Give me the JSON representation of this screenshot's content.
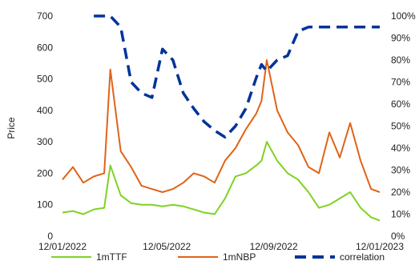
{
  "chart_data": {
    "type": "line",
    "title": "",
    "xlabel": "",
    "ylabel": "Price",
    "y2label": "",
    "ylim": [
      0,
      700
    ],
    "y2lim": [
      0,
      1
    ],
    "grid": false,
    "legend_position": "bottom",
    "xtick_labels": [
      "12/01/2022",
      "12/05/2022",
      "12/09/2022",
      "12/01/2023"
    ],
    "ytick_labels": [
      "0",
      "100",
      "200",
      "300",
      "400",
      "500",
      "600",
      "700"
    ],
    "y2tick_labels": [
      "0%",
      "10%",
      "20%",
      "30%",
      "40%",
      "50%",
      "60%",
      "70%",
      "80%",
      "90%",
      "100%"
    ],
    "x": [
      "2022-01-12",
      "2022-01-24",
      "2022-02-05",
      "2022-02-17",
      "2022-03-01",
      "2022-03-08",
      "2022-03-20",
      "2022-04-01",
      "2022-04-13",
      "2022-04-25",
      "2022-05-07",
      "2022-05-19",
      "2022-05-31",
      "2022-06-12",
      "2022-06-24",
      "2022-07-06",
      "2022-07-18",
      "2022-07-30",
      "2022-08-11",
      "2022-08-23",
      "2022-08-29",
      "2022-09-04",
      "2022-09-16",
      "2022-09-28",
      "2022-10-10",
      "2022-10-22",
      "2022-11-03",
      "2022-11-15",
      "2022-11-27",
      "2022-12-09",
      "2022-12-21",
      "2023-01-02",
      "2023-01-12"
    ],
    "series": [
      {
        "name": "1mTTF",
        "color": "#7ed321",
        "style": "solid",
        "axis": "left",
        "values": [
          75,
          80,
          70,
          85,
          90,
          225,
          130,
          105,
          100,
          100,
          95,
          100,
          95,
          85,
          75,
          70,
          120,
          190,
          200,
          225,
          240,
          300,
          240,
          200,
          180,
          140,
          90,
          100,
          120,
          140,
          90,
          60,
          50
        ]
      },
      {
        "name": "1mNBP",
        "color": "#e06317",
        "style": "solid",
        "axis": "left",
        "values": [
          180,
          220,
          170,
          190,
          200,
          530,
          270,
          220,
          160,
          150,
          140,
          150,
          170,
          200,
          190,
          170,
          240,
          280,
          340,
          390,
          430,
          560,
          400,
          330,
          290,
          220,
          200,
          330,
          250,
          360,
          240,
          150,
          140
        ]
      },
      {
        "name": "correlation",
        "color": "#003399",
        "style": "dashed",
        "axis": "right",
        "values": [
          null,
          null,
          null,
          1.0,
          1.0,
          1.0,
          0.95,
          0.7,
          0.65,
          0.63,
          0.85,
          0.8,
          0.65,
          0.58,
          0.52,
          0.48,
          0.45,
          0.5,
          0.58,
          0.72,
          0.78,
          0.75,
          0.8,
          0.82,
          0.93,
          0.95,
          0.95,
          0.95,
          0.95,
          0.95,
          0.95,
          0.95,
          0.95
        ]
      }
    ]
  }
}
